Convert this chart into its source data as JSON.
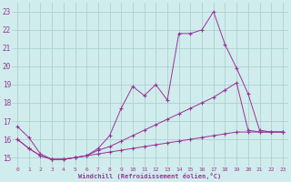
{
  "bg_color": "#d0ecec",
  "grid_color": "#a8cccc",
  "line_color": "#993399",
  "xlabel": "Windchill (Refroidissement éolien,°C)",
  "ylim": [
    14.5,
    23.5
  ],
  "xlim": [
    -0.5,
    23.5
  ],
  "yticks": [
    15,
    16,
    17,
    18,
    19,
    20,
    21,
    22,
    23
  ],
  "xticks": [
    0,
    1,
    2,
    3,
    4,
    5,
    6,
    7,
    8,
    9,
    10,
    11,
    12,
    13,
    14,
    15,
    16,
    17,
    18,
    19,
    20,
    21,
    22,
    23
  ],
  "series1_x": [
    0,
    1,
    2,
    3,
    4,
    5,
    6,
    7,
    8,
    9,
    10,
    11,
    12,
    13,
    14,
    15,
    16,
    17,
    18,
    19,
    20,
    21,
    22,
    23
  ],
  "series1_y": [
    16.7,
    16.1,
    15.2,
    14.9,
    14.9,
    15.0,
    15.1,
    15.5,
    16.2,
    17.7,
    18.9,
    18.4,
    19.0,
    18.15,
    21.8,
    21.8,
    22.0,
    23.0,
    21.2,
    19.9,
    18.5,
    16.5,
    16.4,
    16.4
  ],
  "series2_x": [
    0,
    1,
    2,
    3,
    4,
    5,
    6,
    7,
    8,
    9,
    10,
    11,
    12,
    13,
    14,
    15,
    16,
    17,
    18,
    19,
    20,
    21,
    22,
    23
  ],
  "series2_y": [
    16.0,
    15.5,
    15.1,
    14.9,
    14.9,
    15.0,
    15.1,
    15.4,
    15.6,
    15.9,
    16.2,
    16.5,
    16.8,
    17.1,
    17.4,
    17.7,
    18.0,
    18.3,
    18.7,
    19.1,
    16.5,
    16.4,
    16.4,
    16.4
  ],
  "series3_x": [
    0,
    1,
    2,
    3,
    4,
    5,
    6,
    7,
    8,
    9,
    10,
    11,
    12,
    13,
    14,
    15,
    16,
    17,
    18,
    19,
    20,
    21,
    22,
    23
  ],
  "series3_y": [
    16.0,
    15.5,
    15.1,
    14.9,
    14.9,
    15.0,
    15.1,
    15.2,
    15.3,
    15.4,
    15.5,
    15.6,
    15.7,
    15.8,
    15.9,
    16.0,
    16.1,
    16.2,
    16.3,
    16.4,
    16.4,
    16.4,
    16.4,
    16.4
  ]
}
